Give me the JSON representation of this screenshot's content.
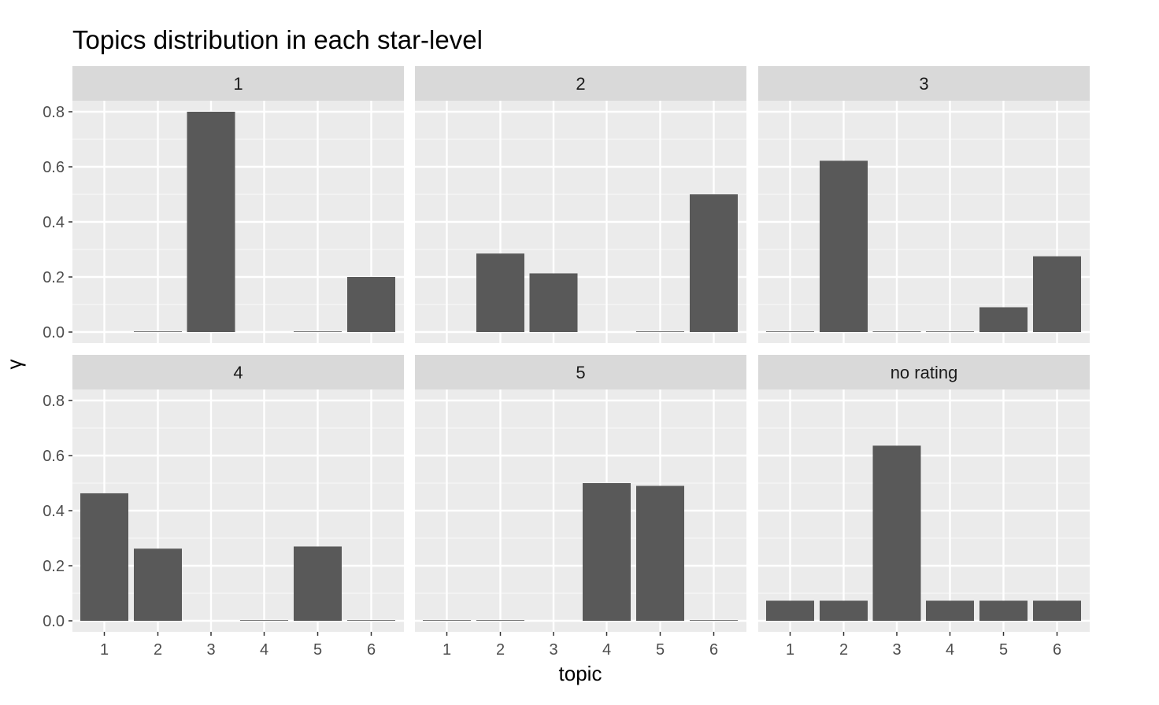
{
  "chart_data": {
    "type": "bar",
    "title": "Topics distribution in each star-level",
    "xlabel": "topic",
    "ylabel": "γ",
    "ylim": [
      0,
      0.8
    ],
    "yticks": [
      "0.0",
      "0.2",
      "0.4",
      "0.6",
      "0.8"
    ],
    "categories": [
      "1",
      "2",
      "3",
      "4",
      "5",
      "6"
    ],
    "grid": true,
    "panels": [
      {
        "label": "1",
        "values": [
          0.0,
          0.001,
          0.8,
          0.0,
          0.001,
          0.2
        ]
      },
      {
        "label": "2",
        "values": [
          0.0,
          0.285,
          0.213,
          0.0,
          0.001,
          0.5
        ]
      },
      {
        "label": "3",
        "values": [
          0.001,
          0.622,
          0.001,
          0.001,
          0.09,
          0.275
        ]
      },
      {
        "label": "4",
        "values": [
          0.463,
          0.262,
          0.0,
          0.001,
          0.27,
          0.001
        ]
      },
      {
        "label": "5",
        "values": [
          0.001,
          0.001,
          0.0,
          0.5,
          0.49,
          0.001
        ]
      },
      {
        "label": "no rating",
        "values": [
          0.073,
          0.073,
          0.636,
          0.073,
          0.073,
          0.073
        ]
      }
    ]
  }
}
